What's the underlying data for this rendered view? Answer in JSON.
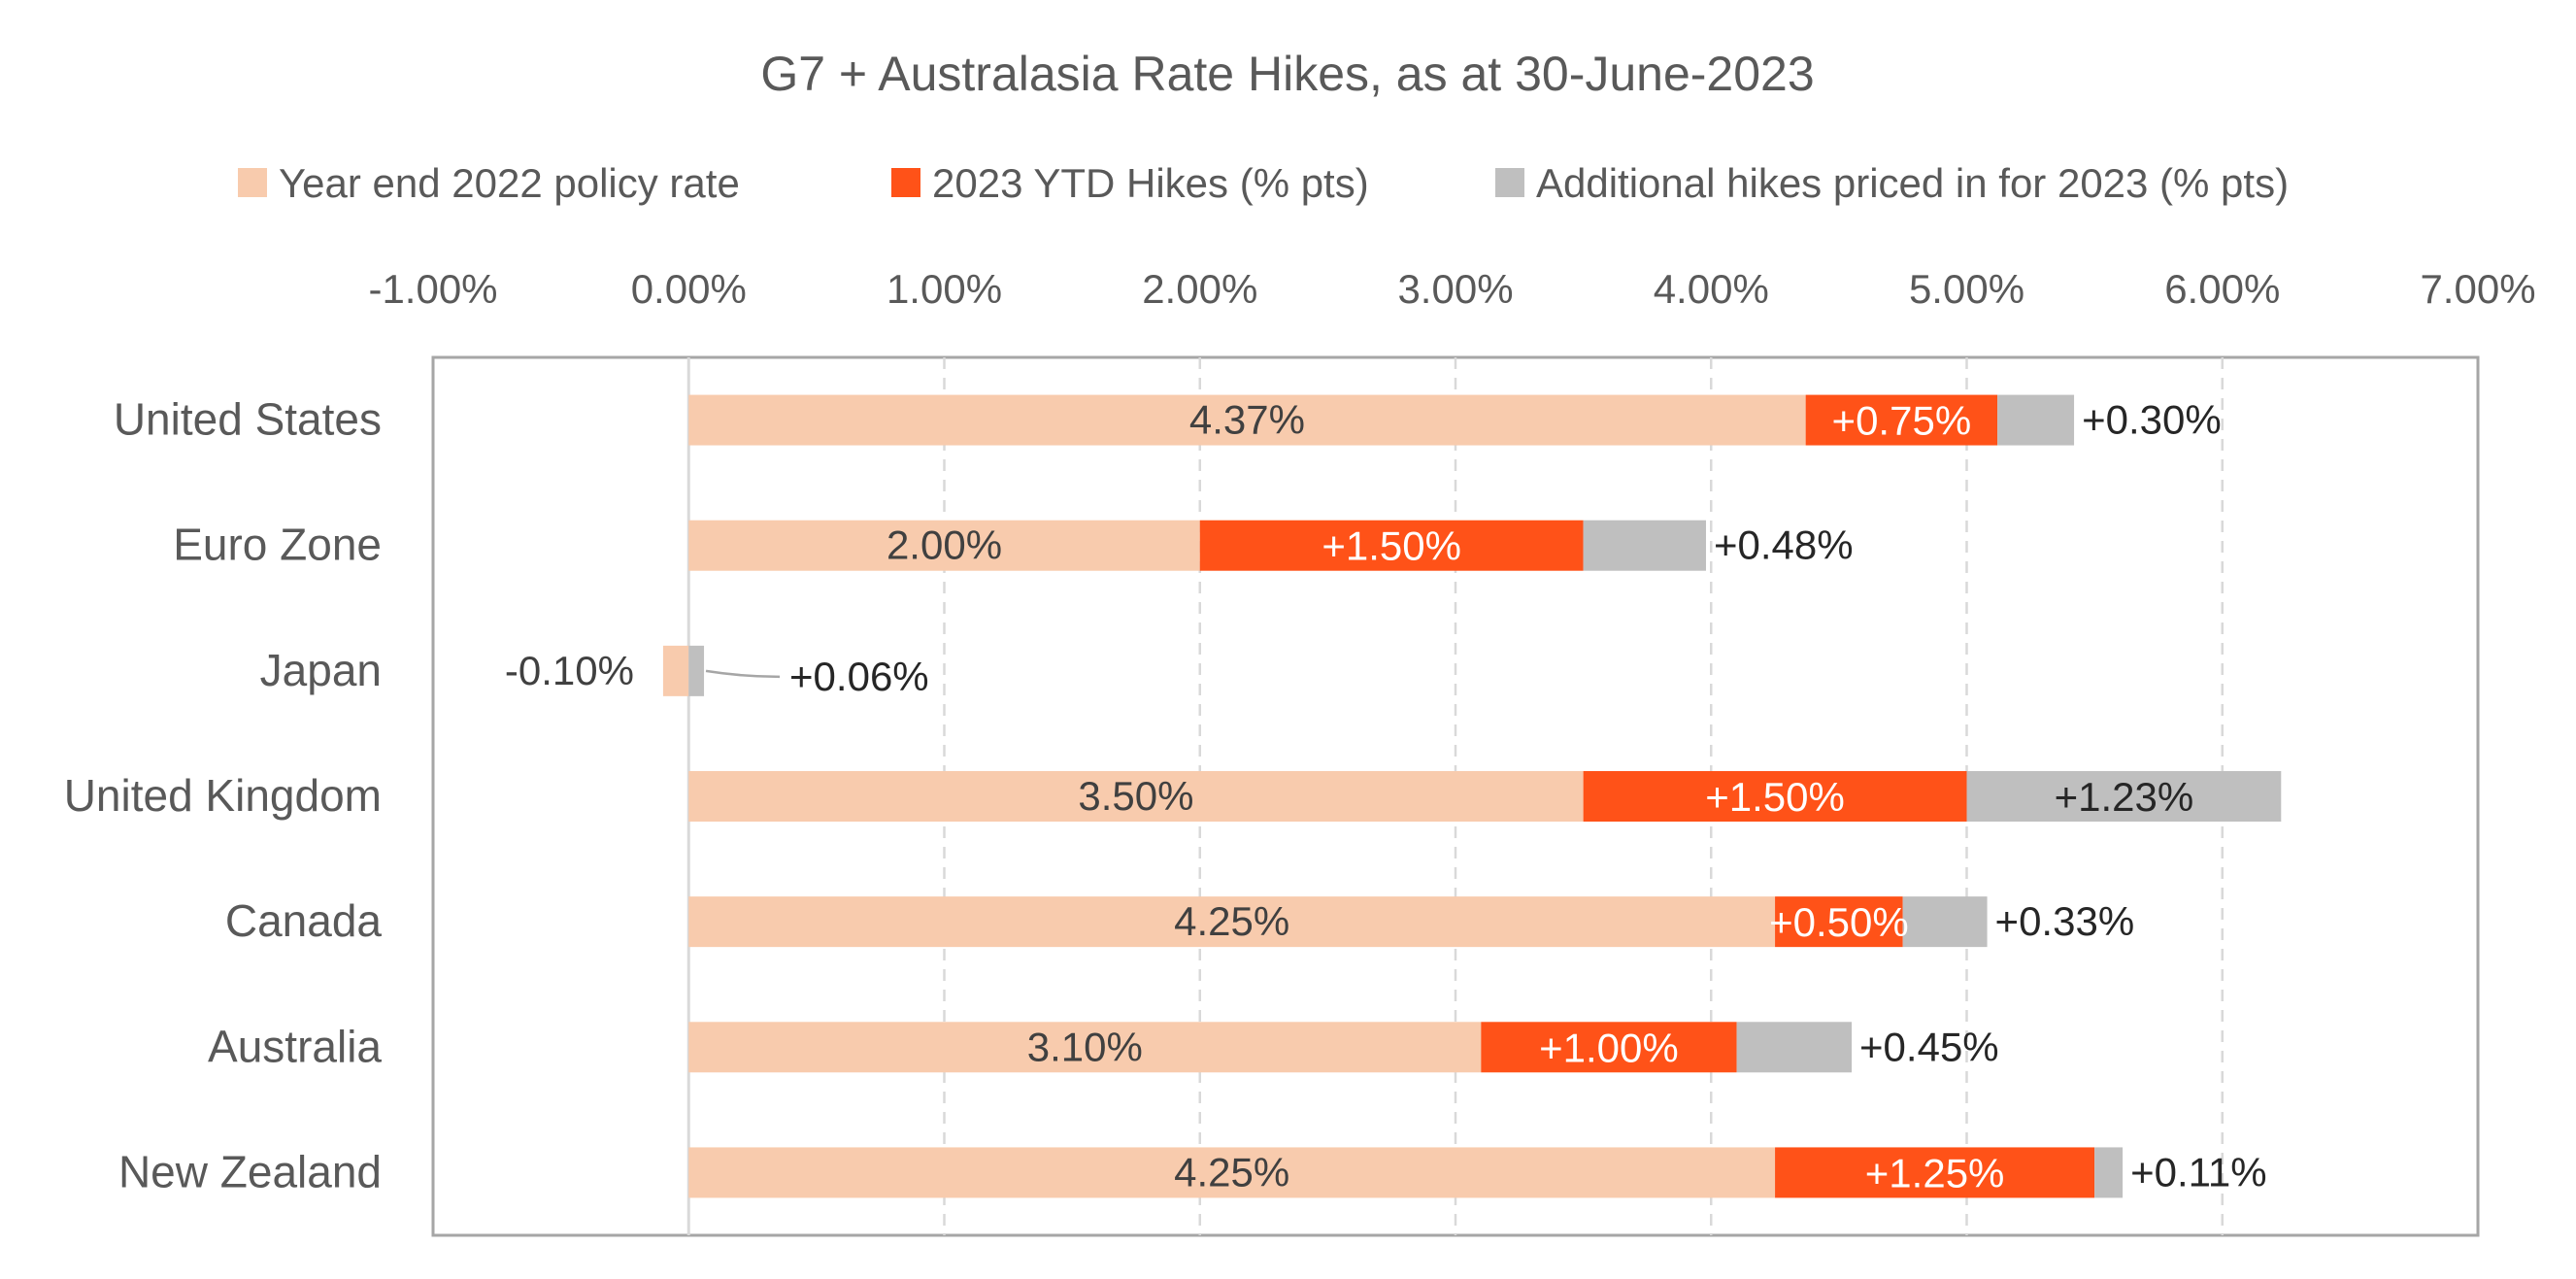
{
  "chart_data": {
    "type": "bar",
    "orientation": "horizontal",
    "stacked": true,
    "title": "G7 + Australasia Rate Hikes, as at 30-June-2023",
    "xlim": [
      -1.0,
      7.0
    ],
    "x_ticks": [
      -1,
      0,
      1,
      2,
      3,
      4,
      5,
      6,
      7
    ],
    "x_tick_labels": [
      "-1.00%",
      "0.00%",
      "1.00%",
      "2.00%",
      "3.00%",
      "4.00%",
      "5.00%",
      "6.00%",
      "7.00%"
    ],
    "x_axis_position": "top",
    "grid": "vertical dashed",
    "legend_position": "top",
    "categories": [
      "United States",
      "Euro Zone",
      "Japan",
      "United Kingdom",
      "Canada",
      "Australia",
      "New Zealand"
    ],
    "series": [
      {
        "name": "Year end 2022 policy rate",
        "color": "#F8CBAD",
        "values": [
          4.37,
          2.0,
          -0.1,
          3.5,
          4.25,
          3.1,
          4.25
        ],
        "labels": [
          "4.37%",
          "2.00%",
          "-0.10%",
          "3.50%",
          "4.25%",
          "3.10%",
          "4.25%"
        ]
      },
      {
        "name": "2023 YTD Hikes (% pts)",
        "color": "#FF5218",
        "values": [
          0.75,
          1.5,
          0.0,
          1.5,
          0.5,
          1.0,
          1.25
        ],
        "labels": [
          "+0.75%",
          "+1.50%",
          "",
          "+1.50%",
          "+0.50%",
          "+1.00%",
          "+1.25%"
        ]
      },
      {
        "name": "Additional hikes priced in for 2023 (% pts)",
        "color": "#BFBFBF",
        "values": [
          0.3,
          0.48,
          0.06,
          1.23,
          0.33,
          0.45,
          0.11
        ],
        "labels": [
          "+0.30%",
          "+0.48%",
          "+0.06%",
          "+1.23%",
          "+0.33%",
          "+0.45%",
          "+0.11%"
        ]
      }
    ]
  }
}
